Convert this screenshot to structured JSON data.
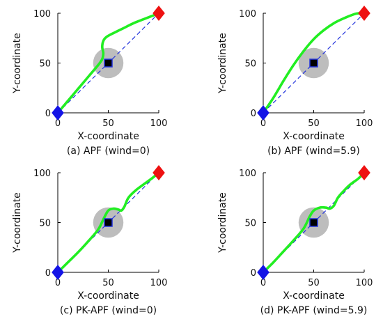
{
  "chart_data": [
    {
      "type": "line",
      "caption": "(a) APF (wind=0)",
      "xlabel": "X-coordinate",
      "ylabel": "Y-coordinate",
      "xlim": [
        0,
        100
      ],
      "ylim": [
        0,
        100
      ],
      "xticks": [
        0,
        50,
        100
      ],
      "yticks": [
        0,
        50,
        100
      ],
      "start": [
        0,
        0
      ],
      "goal": [
        100,
        100
      ],
      "obstacle": {
        "center": [
          50,
          50
        ],
        "radius": 15
      },
      "series": [
        {
          "role": "reference",
          "x": [
            0,
            100
          ],
          "y": [
            0,
            100
          ]
        },
        {
          "role": "path",
          "x": [
            0,
            10,
            20,
            30,
            40,
            44,
            45,
            44,
            45,
            48,
            55,
            65,
            75,
            85,
            95,
            100
          ],
          "y": [
            0,
            12,
            24,
            36,
            48,
            54,
            60,
            66,
            72,
            76,
            80,
            85,
            90,
            94,
            98,
            100
          ]
        }
      ]
    },
    {
      "type": "line",
      "caption": "(b) APF (wind=5.9)",
      "xlabel": "X-coordinate",
      "ylabel": "Y-coordinate",
      "xlim": [
        0,
        100
      ],
      "ylim": [
        0,
        100
      ],
      "xticks": [
        0,
        50,
        100
      ],
      "yticks": [
        0,
        50,
        100
      ],
      "start": [
        0,
        0
      ],
      "goal": [
        100,
        100
      ],
      "obstacle": {
        "center": [
          50,
          50
        ],
        "radius": 15
      },
      "series": [
        {
          "role": "reference",
          "x": [
            0,
            100
          ],
          "y": [
            0,
            100
          ]
        },
        {
          "role": "path",
          "x": [
            0,
            10,
            20,
            30,
            40,
            50,
            60,
            70,
            80,
            90,
            95,
            100
          ],
          "y": [
            0,
            15,
            32,
            48,
            62,
            74,
            83,
            90,
            95,
            99,
            100,
            100
          ]
        }
      ]
    },
    {
      "type": "line",
      "caption": "(c) PK-APF (wind=0)",
      "xlabel": "X-coordinate",
      "ylabel": "Y-coordinate",
      "xlim": [
        0,
        100
      ],
      "ylim": [
        0,
        100
      ],
      "xticks": [
        0,
        50,
        100
      ],
      "yticks": [
        0,
        50,
        100
      ],
      "start": [
        0,
        0
      ],
      "goal": [
        100,
        100
      ],
      "obstacle": {
        "center": [
          50,
          50
        ],
        "radius": 15
      },
      "series": [
        {
          "role": "reference",
          "x": [
            0,
            100
          ],
          "y": [
            0,
            100
          ]
        },
        {
          "role": "path",
          "x": [
            0,
            10,
            20,
            30,
            40,
            46,
            50,
            55,
            60,
            63,
            66,
            70,
            78,
            86,
            94,
            100
          ],
          "y": [
            0,
            10,
            20,
            31,
            43,
            55,
            62,
            64,
            63,
            62,
            66,
            75,
            83,
            89,
            95,
            100
          ]
        }
      ]
    },
    {
      "type": "line",
      "caption": "(d) PK-APF (wind=5.9)",
      "xlabel": "X-coordinate",
      "ylabel": "Y-coordinate",
      "xlim": [
        0,
        100
      ],
      "ylim": [
        0,
        100
      ],
      "xticks": [
        0,
        50,
        100
      ],
      "yticks": [
        0,
        50,
        100
      ],
      "start": [
        0,
        0
      ],
      "goal": [
        100,
        100
      ],
      "obstacle": {
        "center": [
          50,
          50
        ],
        "radius": 15
      },
      "series": [
        {
          "role": "reference",
          "x": [
            0,
            100
          ],
          "y": [
            0,
            100
          ]
        },
        {
          "role": "path",
          "x": [
            0,
            10,
            20,
            30,
            40,
            46,
            50,
            56,
            62,
            66,
            70,
            74,
            80,
            86,
            94,
            100
          ],
          "y": [
            0,
            10,
            21,
            32,
            44,
            56,
            62,
            65,
            65,
            64,
            67,
            75,
            82,
            88,
            94,
            100
          ]
        }
      ]
    }
  ],
  "colors": {
    "path": "#22ee22",
    "reference": "#2233dd",
    "obstacle": "#bdbdbd",
    "obstacle_center": "#000000",
    "obstacle_center_edge": "#2233dd",
    "start": "#1414e6",
    "goal": "#ee1111",
    "axis": "#000000"
  }
}
